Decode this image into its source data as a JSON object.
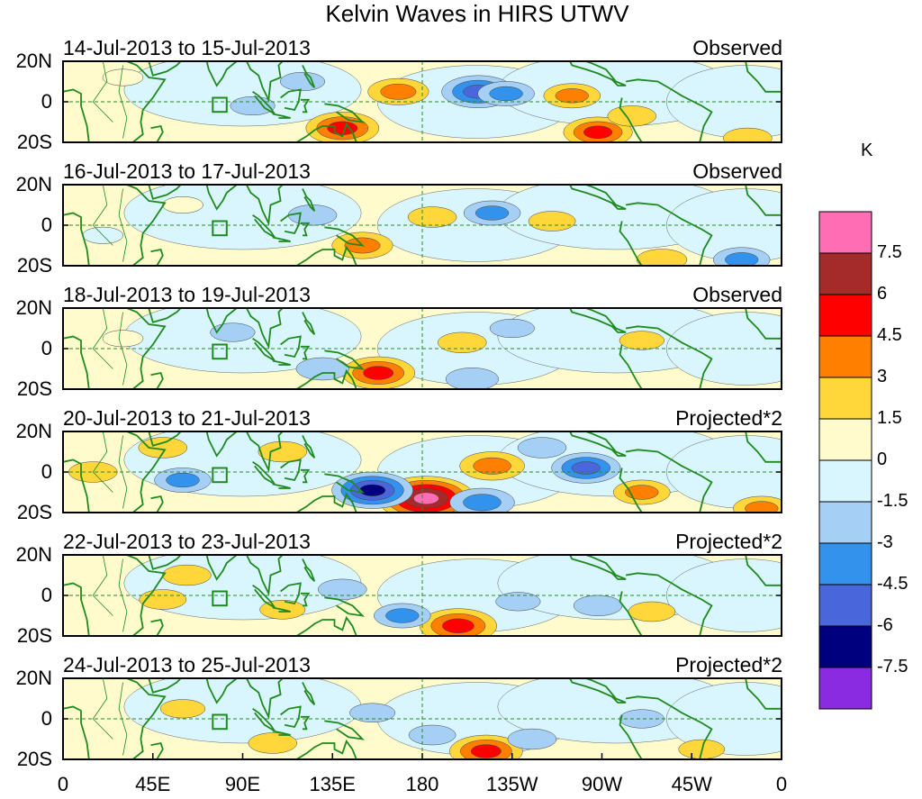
{
  "chart_data": {
    "type": "heatmap",
    "title": "Kelvin Waves in HIRS UTWV",
    "xlabel": "",
    "ylabel": "",
    "xlim": [
      0,
      360
    ],
    "ylim": [
      -20,
      20
    ],
    "x_ticks": [
      "0",
      "45E",
      "90E",
      "135E",
      "180",
      "135W",
      "90W",
      "45W",
      "0"
    ],
    "y_ticks": [
      "20N",
      "0",
      "20S"
    ],
    "colorbar": {
      "unit": "K",
      "levels": [
        "7.5",
        "6",
        "4.5",
        "3",
        "1.5",
        "0",
        "-1.5",
        "-3",
        "-4.5",
        "-6",
        "-7.5"
      ],
      "colors": [
        "#ff6eb4",
        "#a52a2a",
        "#ff0000",
        "#ff7f00",
        "#ffd73a",
        "#fffbcc",
        "#d9f5fd",
        "#a5cff4",
        "#3393ec",
        "#4a66db",
        "#00007f",
        "#8a2be2"
      ]
    },
    "panels": [
      {
        "date": "14-Jul-2013 to 15-Jul-2013",
        "label": "Observed",
        "features": [
          {
            "lon": 168,
            "lat": 5,
            "value": 3.5
          },
          {
            "lon": 208,
            "lat": 5,
            "value": -5
          },
          {
            "lon": 222,
            "lat": 4,
            "value": -3
          },
          {
            "lon": 255,
            "lat": 3,
            "value": 3
          },
          {
            "lon": 268,
            "lat": -15,
            "value": 4.5
          },
          {
            "lon": 285,
            "lat": -7,
            "value": 2
          },
          {
            "lon": 140,
            "lat": -13,
            "value": 5
          },
          {
            "lon": 95,
            "lat": -2,
            "value": -1.5
          },
          {
            "lon": 343,
            "lat": -18,
            "value": 2
          },
          {
            "lon": 30,
            "lat": 12,
            "value": 1
          },
          {
            "lon": 120,
            "lat": 10,
            "value": -1.5
          }
        ]
      },
      {
        "date": "16-Jul-2013 to 17-Jul-2013",
        "label": "Observed",
        "features": [
          {
            "lon": 150,
            "lat": -10,
            "value": 3.5
          },
          {
            "lon": 185,
            "lat": 4,
            "value": 2
          },
          {
            "lon": 215,
            "lat": 6,
            "value": -3
          },
          {
            "lon": 125,
            "lat": 5,
            "value": -2
          },
          {
            "lon": 245,
            "lat": 2,
            "value": 1.8
          },
          {
            "lon": 300,
            "lat": -17,
            "value": 2.2
          },
          {
            "lon": 340,
            "lat": -17,
            "value": -3
          },
          {
            "lon": 60,
            "lat": 10,
            "value": 1
          },
          {
            "lon": 20,
            "lat": -5,
            "value": -1
          }
        ]
      },
      {
        "date": "18-Jul-2013 to 19-Jul-2013",
        "label": "Observed",
        "features": [
          {
            "lon": 158,
            "lat": -12,
            "value": 5
          },
          {
            "lon": 130,
            "lat": -10,
            "value": -2.5
          },
          {
            "lon": 200,
            "lat": 3,
            "value": 2
          },
          {
            "lon": 205,
            "lat": -15,
            "value": -2.5
          },
          {
            "lon": 290,
            "lat": 4,
            "value": 1.5
          },
          {
            "lon": 225,
            "lat": 10,
            "value": -1.5
          },
          {
            "lon": 30,
            "lat": 5,
            "value": 1
          },
          {
            "lon": 85,
            "lat": 8,
            "value": -1.5
          }
        ]
      },
      {
        "date": "20-Jul-2013 to 21-Jul-2013",
        "label": "Projected*2",
        "features": [
          {
            "lon": 182,
            "lat": -13,
            "value": 8
          },
          {
            "lon": 155,
            "lat": -9,
            "value": -6
          },
          {
            "lon": 210,
            "lat": -15,
            "value": -4
          },
          {
            "lon": 215,
            "lat": 3,
            "value": 4
          },
          {
            "lon": 262,
            "lat": 2,
            "value": -4.5
          },
          {
            "lon": 290,
            "lat": -10,
            "value": 3
          },
          {
            "lon": 60,
            "lat": -4,
            "value": -3
          },
          {
            "lon": 50,
            "lat": 12,
            "value": 2
          },
          {
            "lon": 110,
            "lat": 10,
            "value": 2
          },
          {
            "lon": 350,
            "lat": -18,
            "value": 3
          },
          {
            "lon": 240,
            "lat": 12,
            "value": -2
          },
          {
            "lon": 15,
            "lat": 0,
            "value": 2
          }
        ]
      },
      {
        "date": "22-Jul-2013 to 23-Jul-2013",
        "label": "Projected*2",
        "features": [
          {
            "lon": 198,
            "lat": -15,
            "value": 5.5
          },
          {
            "lon": 170,
            "lat": -10,
            "value": -3
          },
          {
            "lon": 62,
            "lat": 10,
            "value": 2
          },
          {
            "lon": 50,
            "lat": -2,
            "value": 1.8
          },
          {
            "lon": 228,
            "lat": -3,
            "value": -1.5
          },
          {
            "lon": 268,
            "lat": -5,
            "value": -2
          },
          {
            "lon": 295,
            "lat": -8,
            "value": 1.8
          },
          {
            "lon": 140,
            "lat": 3,
            "value": -2
          },
          {
            "lon": 110,
            "lat": -7,
            "value": 1.6
          }
        ]
      },
      {
        "date": "24-Jul-2013 to 25-Jul-2013",
        "label": "Projected*2",
        "features": [
          {
            "lon": 212,
            "lat": -16,
            "value": 5
          },
          {
            "lon": 185,
            "lat": -8,
            "value": -1.8
          },
          {
            "lon": 235,
            "lat": -10,
            "value": -2
          },
          {
            "lon": 105,
            "lat": -12,
            "value": 2
          },
          {
            "lon": 60,
            "lat": 5,
            "value": 1.5
          },
          {
            "lon": 155,
            "lat": 3,
            "value": -1.6
          },
          {
            "lon": 290,
            "lat": 0,
            "value": -1.5
          },
          {
            "lon": 320,
            "lat": -15,
            "value": 1.7
          }
        ]
      }
    ]
  }
}
